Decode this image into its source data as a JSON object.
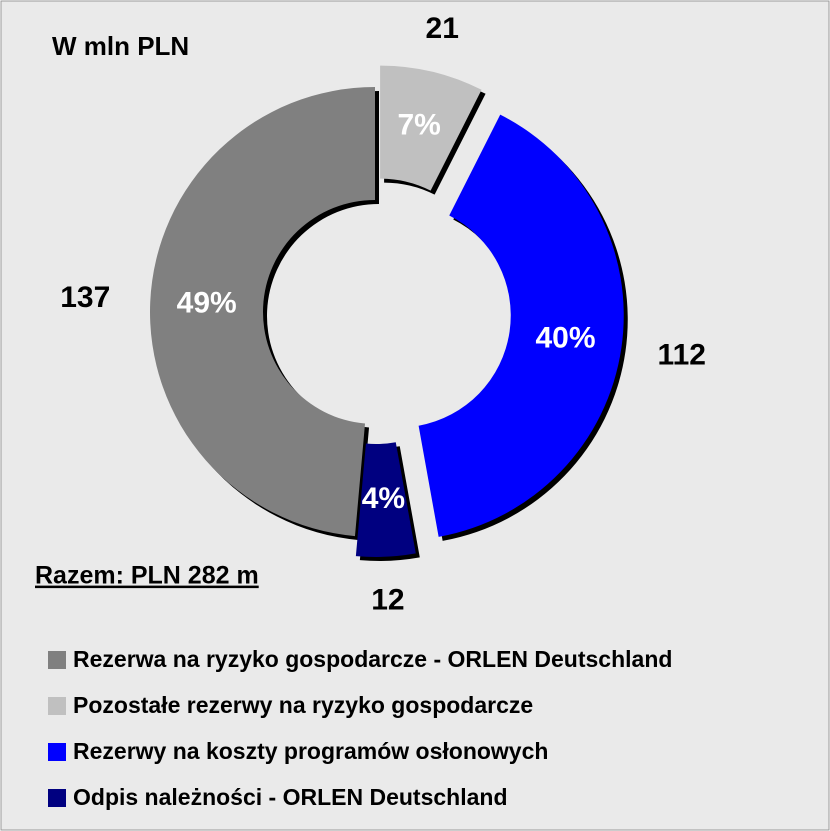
{
  "chart_data": {
    "type": "donut",
    "title": "W mln PLN",
    "annotation": "Razem: PLN 282 m",
    "categories": [
      "Rezerwa na ryzyko gospodarcze - ORLEN Deutschland",
      "Pozostałe rezerwy na ryzyko gospodarcze",
      "Rezerwy na koszty programów osłonowych",
      "Odpis należności - ORLEN Deutschland"
    ],
    "values": [
      137,
      21,
      112,
      12
    ],
    "colors": [
      "#808080",
      "#c0c0c0",
      "#0000ff",
      "#000080"
    ],
    "shares": {
      "values": [
        49,
        7,
        40,
        4
      ],
      "value_labels": [
        "49%",
        "7%",
        "40%",
        "4%"
      ]
    },
    "legend": "bottom"
  }
}
